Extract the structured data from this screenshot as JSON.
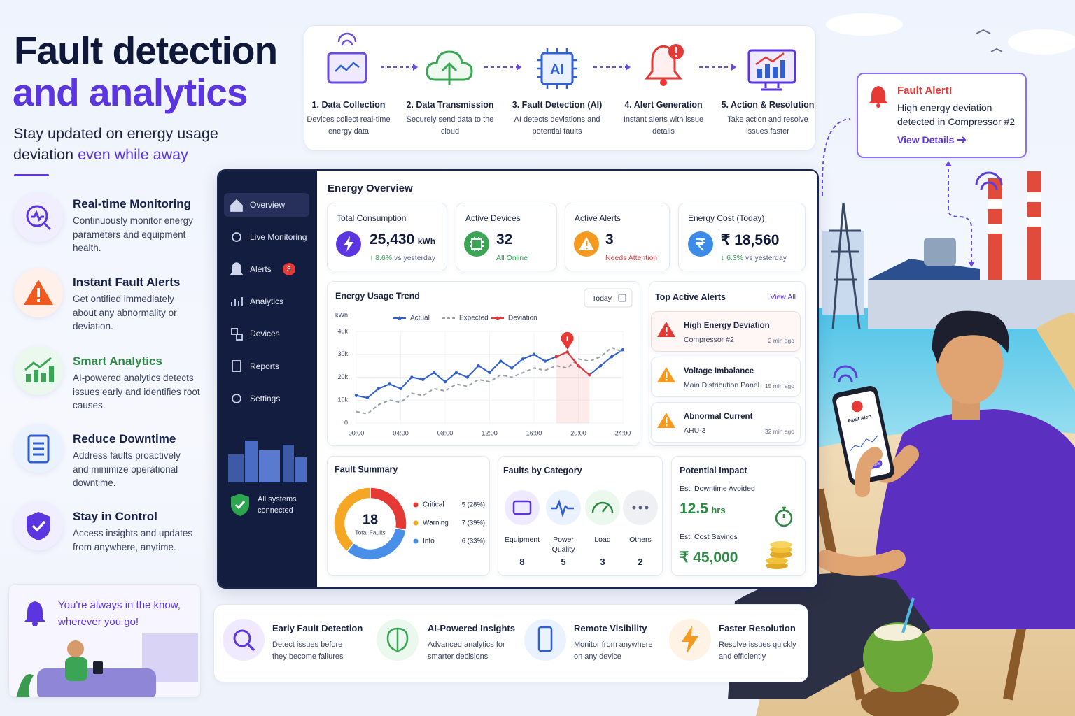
{
  "header": {
    "title_line1": "Fault detection",
    "title_line2": "and analytics",
    "subtitle": "Stay updated on energy usage deviation",
    "subtitle_accent": "even while away"
  },
  "features": [
    {
      "title": "Real-time Monitoring",
      "text": "Continuously monitor energy parameters and equipment health."
    },
    {
      "title": "Instant Fault Alerts",
      "text": "Get ontified immediately about any abnormality or deviation."
    },
    {
      "title": "Smart Analytics",
      "text": "AI-powered analytics detects issues early and identifies root causes."
    },
    {
      "title": "Reduce Downtime",
      "text": "Address faults proactively and minimize operational downtime."
    },
    {
      "title": "Stay in Control",
      "text": "Access insights and updates from anywhere, anytime."
    }
  ],
  "know_box": {
    "text": "You're always in the know, wherever you go!"
  },
  "pipeline": [
    {
      "title": "1. Data Collection",
      "text": "Devices collect real-time energy data"
    },
    {
      "title": "2. Data Transmission",
      "text": "Securely send data to the cloud"
    },
    {
      "title": "3. Fault Detection (AI)",
      "text": "AI detects deviations and potential faults",
      "icon_text": "AI"
    },
    {
      "title": "4. Alert Generation",
      "text": "Instant alerts with issue details"
    },
    {
      "title": "5. Action & Resolution",
      "text": "Take action and resolve issues faster"
    }
  ],
  "alert_card": {
    "title": "Fault Alert!",
    "text": "High energy deviation detected in Compressor #2",
    "link": "View Details"
  },
  "sidebar": {
    "nav": [
      {
        "label": "Overview"
      },
      {
        "label": "Live Monitoring"
      },
      {
        "label": "Alerts",
        "badge": 3
      },
      {
        "label": "Analytics"
      },
      {
        "label": "Devices"
      },
      {
        "label": "Reports"
      },
      {
        "label": "Settings"
      }
    ],
    "status": "All systems connected"
  },
  "overview": {
    "title": "Energy Overview",
    "kpis": [
      {
        "label": "Total Consumption",
        "value": "25,430",
        "unit": "kWh",
        "change": "↑ 8.6%",
        "note": "vs yesterday"
      },
      {
        "label": "Active Devices",
        "value": 32,
        "note": "All Online"
      },
      {
        "label": "Active Alerts",
        "value": 3,
        "note": "Needs Attention"
      },
      {
        "label": "Energy Cost (Today)",
        "value": "₹ 18,560",
        "change": "↓ 6.3%",
        "note": "vs yesterday"
      }
    ]
  },
  "trend_controls": {
    "range": "Today"
  },
  "top_alerts": {
    "title": "Top Active Alerts",
    "link": "View All",
    "items": [
      {
        "title": "High Energy Deviation",
        "device": "Compressor #2",
        "time": "2 min ago"
      },
      {
        "title": "Voltage Imbalance",
        "device": "Main Distribution Panel",
        "time": "15 min ago"
      },
      {
        "title": "Abnormal Current",
        "device": "AHU-3",
        "time": "32 min ago"
      }
    ]
  },
  "categories_card": {
    "title": "Faults by Category",
    "items": [
      {
        "name": "Equipment",
        "count": 8
      },
      {
        "name": "Power Quality",
        "count": 5
      },
      {
        "name": "Load",
        "count": 3
      },
      {
        "name": "Others",
        "count": 2
      }
    ]
  },
  "impact": {
    "title": "Potential Impact",
    "downtime_label": "Est. Downtime Avoided",
    "downtime_value": 12.5,
    "downtime_unit": "hrs",
    "savings_label": "Est. Cost Savings",
    "savings_value": "₹ 45,000"
  },
  "benefits": [
    {
      "title": "Early Fault Detection",
      "text": "Detect issues before they become failures"
    },
    {
      "title": "AI-Powered Insights",
      "text": "Advanced analytics for smarter decisions"
    },
    {
      "title": "Remote Visibility",
      "text": "Monitor from anywhere on any device"
    },
    {
      "title": "Faster Resolution",
      "text": "Resolve issues quickly and efficiently"
    }
  ],
  "phone": {
    "title": "Fault Alert",
    "button": "View Details"
  },
  "chart_data": [
    {
      "type": "line",
      "title": "Energy Usage Trend",
      "y_label": "kWh",
      "x": [
        0,
        1,
        2,
        3,
        4,
        5,
        6,
        7,
        8,
        9,
        10,
        11,
        12,
        13,
        14,
        15,
        16,
        17,
        18,
        19,
        20,
        21,
        22,
        23,
        24
      ],
      "xlim": [
        0,
        24
      ],
      "xticks": [
        {
          "value": 0,
          "label": "00:00"
        },
        {
          "value": 4,
          "label": "04:00"
        },
        {
          "value": 8,
          "label": "08:00"
        },
        {
          "value": 12,
          "label": "12:00"
        },
        {
          "value": 16,
          "label": "16:00"
        },
        {
          "value": 20,
          "label": "20:00"
        },
        {
          "value": 24,
          "label": "24:00"
        }
      ],
      "ylim": [
        0,
        40000
      ],
      "yticks": [
        0,
        {
          "value": 10000,
          "label": "10k"
        },
        {
          "value": 20000,
          "label": "20k"
        },
        {
          "value": 30000,
          "label": "30k"
        },
        {
          "value": 40000,
          "label": "40k"
        }
      ],
      "grid": true,
      "series": [
        {
          "name": "Actual",
          "color": "#2f5fd0",
          "style": "solid",
          "values": [
            12000,
            11000,
            15000,
            17000,
            15000,
            20000,
            19000,
            22000,
            18000,
            22000,
            20000,
            25000,
            22000,
            27000,
            24000,
            28000,
            30000,
            27000,
            29000,
            31000,
            25000,
            21000,
            25000,
            29000,
            32000
          ]
        },
        {
          "name": "Expected",
          "color": "#9aa0ab",
          "style": "dashed",
          "values": [
            5000,
            4000,
            8000,
            10000,
            9000,
            13000,
            12000,
            15000,
            14000,
            17000,
            16000,
            19000,
            18000,
            21000,
            20000,
            22000,
            24000,
            23000,
            25000,
            24000,
            28000,
            27000,
            29000,
            33000,
            31000
          ]
        },
        {
          "name": "Deviation",
          "color": "#e53935",
          "style": "solid",
          "values": [
            null,
            null,
            null,
            null,
            null,
            null,
            null,
            null,
            null,
            null,
            null,
            null,
            null,
            null,
            null,
            null,
            null,
            null,
            29000,
            31000,
            25000,
            21000,
            null,
            null,
            null
          ]
        }
      ]
    },
    {
      "type": "pie",
      "title": "Fault Summary",
      "donut": true,
      "center_value": 18,
      "center_label": "Total Faults",
      "categories": [
        "Critical",
        "Warning",
        "Info"
      ],
      "values": [
        5,
        7,
        6
      ],
      "value_labels": [
        "5 (28%)",
        "7 (39%)",
        "6 (33%)"
      ],
      "colors": [
        "#e53935",
        "#f5a623",
        "#4a8fe7"
      ]
    }
  ]
}
